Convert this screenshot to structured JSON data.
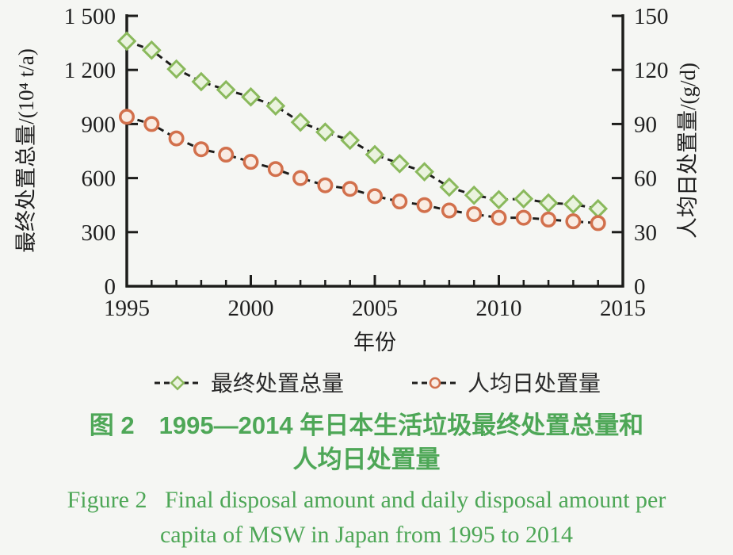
{
  "figure": {
    "caption_zh_line1": "图 2　1995—2014 年日本生活垃圾最终处置总量和",
    "caption_zh_line2": "人均日处置量",
    "caption_en_line1": "Figure 2   Final disposal amount and daily disposal amount per",
    "caption_en_line2": "capita of MSW in Japan from 1995 to 2014",
    "caption_color": "#4ea757"
  },
  "chart_data": {
    "type": "line",
    "title": "",
    "xlabel": "年份",
    "x": [
      1995,
      1996,
      1997,
      1998,
      1999,
      2000,
      2001,
      2002,
      2003,
      2004,
      2005,
      2006,
      2007,
      2008,
      2009,
      2010,
      2011,
      2012,
      2013,
      2014
    ],
    "x_axis": {
      "min": 1995,
      "max": 2015,
      "major_ticks": [
        1995,
        2000,
        2005,
        2010,
        2015
      ],
      "major_tick_labels": [
        "1995",
        "2000",
        "2005",
        "2010",
        "2015"
      ],
      "minor_tick_step": 1
    },
    "left_axis": {
      "label": "最终处置总量/(10⁴ t/a)",
      "min": 0,
      "max": 1500,
      "ticks": [
        0,
        300,
        600,
        900,
        1200,
        1500
      ],
      "tick_labels": [
        "0",
        "300",
        "600",
        "900",
        "1 200",
        "1 500"
      ]
    },
    "right_axis": {
      "label": "人均日处置量/(g/d)",
      "min": 0,
      "max": 150,
      "ticks": [
        0,
        30,
        60,
        90,
        120,
        150
      ],
      "tick_labels": [
        "0",
        "30",
        "60",
        "90",
        "120",
        "150"
      ]
    },
    "grid": false,
    "legend_position": "bottom",
    "line_color": "#1d1d1b",
    "line_style": "dashed",
    "series": [
      {
        "name": "最终处置总量",
        "axis": "left",
        "marker": "diamond",
        "marker_stroke": "#8ab95c",
        "marker_fill": "#eaf3de",
        "values": [
          1360,
          1310,
          1205,
          1135,
          1090,
          1050,
          1000,
          910,
          855,
          810,
          730,
          680,
          635,
          550,
          505,
          480,
          485,
          462,
          455,
          430
        ]
      },
      {
        "name": "人均日处置量",
        "axis": "right",
        "marker": "circle",
        "marker_stroke": "#d2704c",
        "marker_fill": "#f9ece3",
        "values": [
          94,
          90,
          82,
          76,
          73,
          69,
          65,
          60,
          56,
          54,
          50,
          47,
          45,
          42,
          40,
          38,
          38,
          37,
          36,
          35
        ]
      }
    ]
  }
}
